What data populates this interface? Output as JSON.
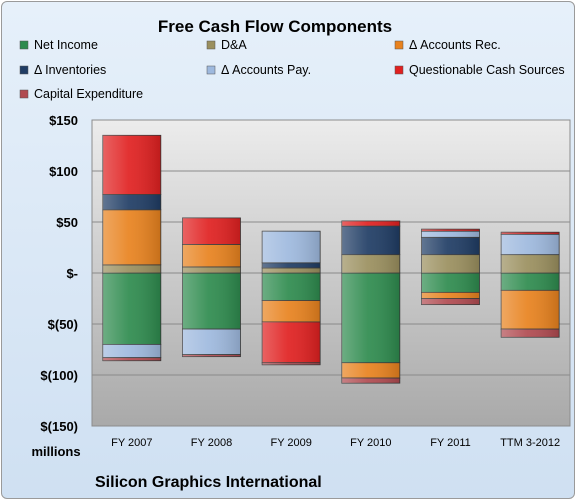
{
  "chart_data": {
    "type": "bar",
    "stacked": true,
    "title": "Free Cash Flow Components",
    "ylabel": "millions",
    "footer": "Silicon Graphics International",
    "ylim": [
      -150,
      150
    ],
    "y_ticks": [
      150,
      100,
      50,
      0,
      -50,
      -100,
      -150
    ],
    "y_tick_labels": [
      "$150",
      "$100",
      "$50",
      "$-",
      "$(50)",
      "$(100)",
      "$(150)"
    ],
    "categories": [
      "FY 2007",
      "FY 2008",
      "FY 2009",
      "FY 2010",
      "FY 2011",
      "TTM 3-2012"
    ],
    "grid": true,
    "legend_position": "top",
    "series": [
      {
        "name": "Net Income",
        "color": "#2e8b4e",
        "values": [
          -70,
          -55,
          -27,
          -88,
          -19,
          -17
        ]
      },
      {
        "name": "D&A",
        "color": "#9a8f5e",
        "values": [
          8,
          6,
          5,
          18,
          18,
          18
        ]
      },
      {
        "name": "Δ Accounts Rec.",
        "color": "#e8821e",
        "values": [
          54,
          22,
          -21,
          -15,
          -6,
          -38
        ]
      },
      {
        "name": "Δ Inventories",
        "color": "#1f3c64",
        "values": [
          15,
          0,
          5,
          28,
          17,
          0
        ]
      },
      {
        "name": "Δ Accounts Pay.",
        "color": "#9eb9de",
        "values": [
          -13,
          -25,
          31,
          0,
          6,
          20
        ]
      },
      {
        "name": "Questionable Cash Sources",
        "color": "#e02020",
        "values": [
          58,
          26,
          -40,
          5,
          2,
          2
        ]
      },
      {
        "name": "Capital Expenditure",
        "color": "#b04a50",
        "values": [
          -3,
          -2,
          -2,
          -5,
          -6,
          -8
        ]
      }
    ]
  }
}
